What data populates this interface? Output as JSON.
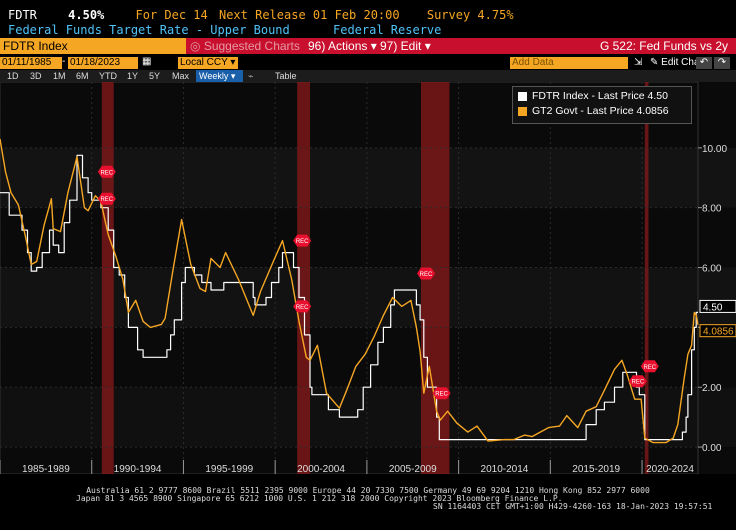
{
  "header": {
    "ticker": "FDTR",
    "price": "4.50%",
    "for_label": "For Dec 14",
    "next_release": "Next Release 01 Feb 20:00",
    "survey": "Survey 4.75%",
    "description": "Federal Funds Target Rate - Upper Bound",
    "source": "Federal Reserve"
  },
  "toolbar": {
    "security": "FDTR Index",
    "suggested": "Suggested Charts",
    "actions": "96) Actions",
    "edit": "97) Edit",
    "screen_title": "G 522: Fed Funds vs 2y"
  },
  "range": {
    "start": "01/11/1985",
    "end": "01/18/2023",
    "currency": "Local CCY",
    "add_data": "Add Data",
    "edit_chart": "Edit Chart"
  },
  "periods": [
    "1D",
    "3D",
    "1M",
    "6M",
    "YTD",
    "1Y",
    "5Y",
    "Max"
  ],
  "frequency": "Weekly",
  "table_label": "Table",
  "footer": {
    "line1": "Australia 61 2 9777 8600 Brazil 5511 2395 9000 Europe 44 20 7330 7500 Germany 49 69 9204 1210 Hong Kong 852 2977 6000",
    "line2": "Japan 81 3 4565 8900        Singapore 65 6212 1000        U.S. 1 212 318 2000        Copyright 2023 Bloomberg Finance L.P.",
    "line3": "SN 1164403 CET  GMT+1:00 H429-4260-163 18-Jan-2023 19:57:51"
  },
  "colors": {
    "fdtr": "#ffffff",
    "gt2": "#f5a623",
    "recession": "#8b1a1a",
    "rec_marker": "#e8102e"
  },
  "chart_data": {
    "type": "line",
    "xlim": [
      1985.0,
      2023.05
    ],
    "ylim": [
      -0.9,
      12.2
    ],
    "yticks": [
      0,
      2,
      4,
      6,
      8,
      10
    ],
    "ytick_labels": [
      "0.00",
      "2.00",
      "4.00",
      "6.00",
      "8.00",
      "10.00"
    ],
    "xtick_labels": [
      "1985-1989",
      "1990-1994",
      "1995-1999",
      "2000-2004",
      "2005-2009",
      "2010-2014",
      "2015-2019",
      "2020-2024"
    ],
    "xtick_positions": [
      1985,
      1990,
      1995,
      2000,
      2005,
      2010,
      2015,
      2020
    ],
    "legend": {
      "placement": "top-right"
    },
    "last_value_labels": [
      {
        "series": "FDTR Index",
        "text": "4.50"
      },
      {
        "series": "GT2 Govt",
        "text": "4.0856"
      }
    ],
    "recessions": [
      [
        1990.55,
        1991.2
      ],
      [
        2001.2,
        2001.9
      ],
      [
        2007.95,
        2009.5
      ],
      [
        2020.15,
        2020.35
      ]
    ],
    "rec_marker_label": "REC",
    "rec_markers": [
      [
        1990.55,
        9.2
      ],
      [
        1990.55,
        8.3
      ],
      [
        2001.2,
        6.9
      ],
      [
        2001.2,
        4.7
      ],
      [
        2007.95,
        5.8
      ],
      [
        2008.8,
        1.8
      ],
      [
        2019.5,
        2.2
      ],
      [
        2020.15,
        2.7
      ]
    ],
    "series": [
      {
        "name": "FDTR Index - Last Price 4.50",
        "legend": "FDTR Index - Last Price 4.50",
        "points": [
          [
            1985.0,
            8.5
          ],
          [
            1985.3,
            8.5
          ],
          [
            1985.5,
            7.75
          ],
          [
            1986.0,
            7.75
          ],
          [
            1986.2,
            7.25
          ],
          [
            1986.5,
            6.5
          ],
          [
            1986.7,
            5.88
          ],
          [
            1987.0,
            6.0
          ],
          [
            1987.3,
            6.5
          ],
          [
            1987.7,
            7.25
          ],
          [
            1987.9,
            6.75
          ],
          [
            1988.2,
            6.5
          ],
          [
            1988.5,
            7.5
          ],
          [
            1988.8,
            8.25
          ],
          [
            1989.2,
            9.75
          ],
          [
            1989.5,
            9.0
          ],
          [
            1989.8,
            8.5
          ],
          [
            1990.0,
            8.25
          ],
          [
            1990.5,
            8.0
          ],
          [
            1990.9,
            7.25
          ],
          [
            1991.2,
            6.0
          ],
          [
            1991.5,
            5.75
          ],
          [
            1991.8,
            5.0
          ],
          [
            1992.0,
            4.0
          ],
          [
            1992.5,
            3.25
          ],
          [
            1992.8,
            3.0
          ],
          [
            1994.0,
            3.0
          ],
          [
            1994.1,
            3.25
          ],
          [
            1994.3,
            3.75
          ],
          [
            1994.5,
            4.25
          ],
          [
            1994.9,
            5.5
          ],
          [
            1995.1,
            6.0
          ],
          [
            1995.6,
            5.75
          ],
          [
            1996.0,
            5.5
          ],
          [
            1996.5,
            5.25
          ],
          [
            1997.2,
            5.5
          ],
          [
            1998.7,
            5.5
          ],
          [
            1998.8,
            5.0
          ],
          [
            1998.9,
            4.75
          ],
          [
            1999.5,
            5.0
          ],
          [
            1999.8,
            5.5
          ],
          [
            2000.2,
            6.0
          ],
          [
            2000.4,
            6.5
          ],
          [
            2001.0,
            6.0
          ],
          [
            2001.3,
            5.0
          ],
          [
            2001.6,
            3.75
          ],
          [
            2001.9,
            2.0
          ],
          [
            2002.0,
            1.75
          ],
          [
            2002.9,
            1.25
          ],
          [
            2003.5,
            1.0
          ],
          [
            2004.5,
            1.25
          ],
          [
            2004.8,
            2.0
          ],
          [
            2005.2,
            2.75
          ],
          [
            2005.6,
            3.5
          ],
          [
            2005.9,
            4.0
          ],
          [
            2006.3,
            4.75
          ],
          [
            2006.5,
            5.25
          ],
          [
            2007.6,
            5.25
          ],
          [
            2007.7,
            4.75
          ],
          [
            2007.9,
            4.25
          ],
          [
            2008.1,
            3.0
          ],
          [
            2008.3,
            2.0
          ],
          [
            2008.8,
            1.0
          ],
          [
            2008.95,
            0.25
          ],
          [
            2015.95,
            0.25
          ],
          [
            2016.95,
            0.75
          ],
          [
            2017.5,
            1.25
          ],
          [
            2017.95,
            1.5
          ],
          [
            2018.5,
            2.0
          ],
          [
            2018.95,
            2.5
          ],
          [
            2019.5,
            2.5
          ],
          [
            2019.7,
            2.0
          ],
          [
            2019.85,
            1.75
          ],
          [
            2020.15,
            0.25
          ],
          [
            2022.2,
            0.5
          ],
          [
            2022.4,
            1.0
          ],
          [
            2022.5,
            1.75
          ],
          [
            2022.7,
            3.25
          ],
          [
            2022.85,
            4.0
          ],
          [
            2022.95,
            4.5
          ],
          [
            2023.05,
            4.5
          ]
        ]
      },
      {
        "name": "GT2 Govt - Last Price 4.0856",
        "legend": "GT2 Govt - Last Price 4.0856",
        "points": [
          [
            1985.0,
            10.3
          ],
          [
            1985.3,
            9.2
          ],
          [
            1985.6,
            8.5
          ],
          [
            1986.0,
            8.1
          ],
          [
            1986.4,
            7.0
          ],
          [
            1986.7,
            6.1
          ],
          [
            1987.0,
            6.2
          ],
          [
            1987.4,
            7.4
          ],
          [
            1987.8,
            8.3
          ],
          [
            1987.9,
            7.3
          ],
          [
            1988.3,
            7.2
          ],
          [
            1988.7,
            8.5
          ],
          [
            1989.2,
            9.7
          ],
          [
            1989.6,
            8.0
          ],
          [
            1989.8,
            7.9
          ],
          [
            1990.2,
            8.4
          ],
          [
            1990.5,
            8.2
          ],
          [
            1990.9,
            7.1
          ],
          [
            1991.3,
            6.4
          ],
          [
            1991.7,
            5.6
          ],
          [
            1992.0,
            4.5
          ],
          [
            1992.4,
            4.9
          ],
          [
            1992.8,
            4.2
          ],
          [
            1993.2,
            4.0
          ],
          [
            1993.8,
            4.1
          ],
          [
            1994.0,
            4.3
          ],
          [
            1994.4,
            5.8
          ],
          [
            1994.9,
            7.6
          ],
          [
            1995.4,
            6.1
          ],
          [
            1995.9,
            5.3
          ],
          [
            1996.2,
            5.2
          ],
          [
            1996.5,
            6.3
          ],
          [
            1997.0,
            6.0
          ],
          [
            1997.3,
            6.5
          ],
          [
            1998.0,
            5.6
          ],
          [
            1998.8,
            4.4
          ],
          [
            1999.2,
            5.2
          ],
          [
            1999.9,
            6.2
          ],
          [
            2000.4,
            6.9
          ],
          [
            2000.9,
            5.6
          ],
          [
            2001.3,
            4.2
          ],
          [
            2001.7,
            3.0
          ],
          [
            2001.9,
            2.9
          ],
          [
            2002.3,
            3.4
          ],
          [
            2002.8,
            1.8
          ],
          [
            2003.5,
            1.3
          ],
          [
            2003.9,
            1.9
          ],
          [
            2004.4,
            2.7
          ],
          [
            2004.9,
            3.1
          ],
          [
            2005.4,
            3.7
          ],
          [
            2005.9,
            4.4
          ],
          [
            2006.4,
            5.0
          ],
          [
            2006.9,
            4.7
          ],
          [
            2007.4,
            4.9
          ],
          [
            2007.7,
            4.0
          ],
          [
            2007.9,
            3.2
          ],
          [
            2008.1,
            1.8
          ],
          [
            2008.4,
            2.7
          ],
          [
            2008.8,
            1.2
          ],
          [
            2009.0,
            0.9
          ],
          [
            2009.4,
            1.2
          ],
          [
            2009.9,
            0.8
          ],
          [
            2010.5,
            0.5
          ],
          [
            2011.0,
            0.7
          ],
          [
            2011.6,
            0.2
          ],
          [
            2012.5,
            0.25
          ],
          [
            2013.0,
            0.25
          ],
          [
            2013.6,
            0.4
          ],
          [
            2014.0,
            0.35
          ],
          [
            2014.9,
            0.65
          ],
          [
            2015.5,
            0.7
          ],
          [
            2015.9,
            1.05
          ],
          [
            2016.5,
            0.65
          ],
          [
            2016.95,
            1.2
          ],
          [
            2017.5,
            1.35
          ],
          [
            2017.95,
            1.9
          ],
          [
            2018.5,
            2.6
          ],
          [
            2018.9,
            2.9
          ],
          [
            2019.2,
            2.4
          ],
          [
            2019.6,
            1.6
          ],
          [
            2019.95,
            1.6
          ],
          [
            2020.15,
            0.3
          ],
          [
            2020.6,
            0.15
          ],
          [
            2021.3,
            0.15
          ],
          [
            2021.7,
            0.3
          ],
          [
            2021.95,
            0.75
          ],
          [
            2022.3,
            2.3
          ],
          [
            2022.5,
            3.1
          ],
          [
            2022.7,
            3.4
          ],
          [
            2022.85,
            4.5
          ],
          [
            2022.95,
            4.4
          ],
          [
            2023.05,
            4.09
          ]
        ]
      }
    ]
  }
}
